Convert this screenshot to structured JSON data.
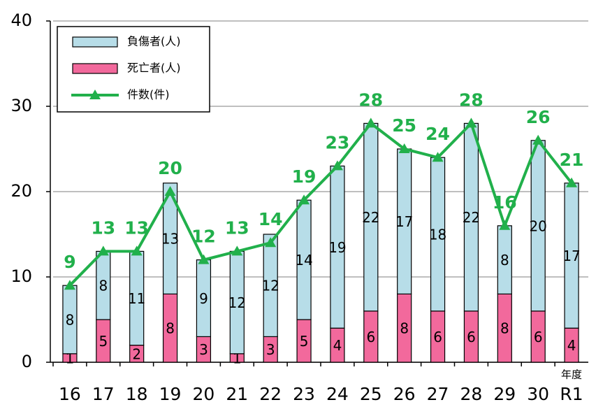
{
  "chart_data": {
    "type": "bar",
    "stacked": true,
    "categories": [
      "16",
      "17",
      "18",
      "19",
      "20",
      "21",
      "22",
      "23",
      "24",
      "25",
      "26",
      "27",
      "28",
      "29",
      "30",
      "R1"
    ],
    "x_unit": "年度",
    "series": [
      {
        "name": "死亡者(人)",
        "color": "#f2699c",
        "values": [
          1,
          5,
          2,
          8,
          3,
          1,
          3,
          5,
          4,
          6,
          8,
          6,
          6,
          8,
          6,
          4
        ]
      },
      {
        "name": "負傷者(人)",
        "color": "#b7dde8",
        "values": [
          8,
          8,
          11,
          13,
          9,
          12,
          12,
          14,
          19,
          22,
          17,
          18,
          22,
          8,
          20,
          17
        ]
      },
      {
        "name": "件数(件)",
        "type": "line",
        "color": "#21b04b",
        "values": [
          9,
          13,
          13,
          20,
          12,
          13,
          14,
          19,
          23,
          28,
          25,
          24,
          28,
          16,
          26,
          21
        ]
      }
    ],
    "ylim": [
      0,
      40
    ],
    "yticks": [
      0,
      10,
      20,
      30,
      40
    ],
    "grid": true,
    "legend": "upper left"
  }
}
